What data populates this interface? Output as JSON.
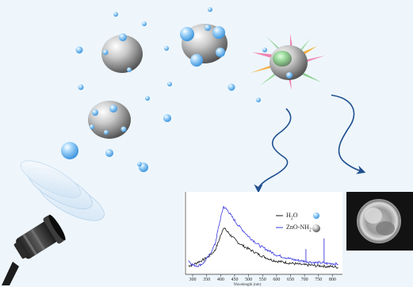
{
  "colors": {
    "background": "#eef6fc",
    "water_bubble": "#6db8ee",
    "nanoparticle": "#9a9a9a",
    "arrow": "#1f4f8f",
    "h2o_series": "#1a1a1a",
    "zno_series": "#3a3ae0"
  },
  "icons": {
    "light_source": "led-lamp-icon",
    "lens": "lens-icon",
    "arrow": "wavy-arrow-icon"
  },
  "chart_data": {
    "type": "line",
    "xlabel": "Wavelength (nm)",
    "ylabel": "",
    "xlim": [
      280,
      830
    ],
    "x_ticks": [
      300,
      350,
      400,
      450,
      500,
      550,
      600,
      650,
      700,
      750,
      800
    ],
    "legend": "top-right",
    "grid": false,
    "series": [
      {
        "name": "H2O",
        "name_base": "H",
        "name_sub": "2",
        "name_tail": "O",
        "marker": "water-bubble-icon",
        "color": "#1a1a1a",
        "x": [
          285,
          300,
          320,
          340,
          360,
          380,
          395,
          410,
          425,
          440,
          460,
          480,
          500,
          520,
          540,
          560,
          580,
          600,
          620,
          640,
          660,
          680,
          700,
          720,
          740,
          760,
          780,
          800,
          820
        ],
        "y": [
          0.08,
          0.09,
          0.13,
          0.16,
          0.21,
          0.28,
          0.42,
          0.58,
          0.52,
          0.46,
          0.39,
          0.34,
          0.3,
          0.26,
          0.22,
          0.19,
          0.16,
          0.14,
          0.13,
          0.12,
          0.11,
          0.1,
          0.09,
          0.09,
          0.08,
          0.08,
          0.07,
          0.07,
          0.06
        ]
      },
      {
        "name": "ZnO-NH2",
        "name_base": "ZnO-NH",
        "name_sub": "2",
        "name_tail": "",
        "marker": "nanoparticle-icon",
        "color": "#3a3ae0",
        "x": [
          285,
          300,
          320,
          340,
          360,
          380,
          395,
          410,
          425,
          440,
          460,
          480,
          500,
          520,
          540,
          560,
          580,
          600,
          620,
          640,
          660,
          680,
          700,
          720,
          740,
          760,
          780,
          800,
          820
        ],
        "y": [
          0.15,
          0.09,
          0.08,
          0.12,
          0.22,
          0.36,
          0.62,
          0.85,
          0.8,
          0.72,
          0.62,
          0.54,
          0.46,
          0.4,
          0.34,
          0.3,
          0.26,
          0.22,
          0.2,
          0.18,
          0.16,
          0.15,
          0.14,
          0.13,
          0.12,
          0.12,
          0.11,
          0.11,
          0.1
        ]
      }
    ],
    "spikes": [
      {
        "x": 705,
        "height": 0.16
      },
      {
        "x": 770,
        "height": 0.32
      }
    ]
  }
}
